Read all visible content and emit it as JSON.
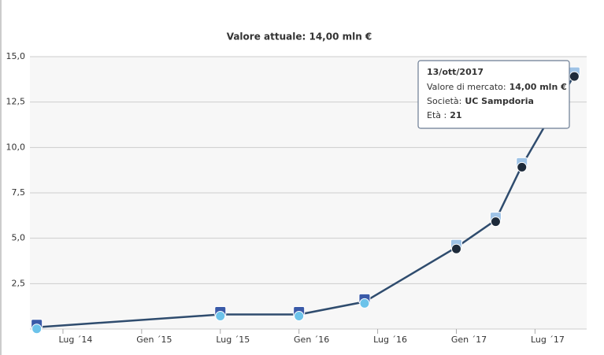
{
  "chart_data": {
    "type": "line",
    "title": "Valore attuale: 14,00 mln €",
    "x": [
      "2014-05",
      "2015-07",
      "2016-01",
      "2016-06",
      "2017-01",
      "2017-04",
      "2017-06",
      "2017-10"
    ],
    "series": [
      {
        "name": "Valore di mercato",
        "color": "#2f4c6e",
        "values": [
          0.1,
          0.8,
          0.8,
          1.5,
          4.5,
          6.0,
          9.0,
          14.0
        ]
      }
    ],
    "xlim": [
      "2014-04",
      "2017-11"
    ],
    "xticks": [
      {
        "value": "2014-07",
        "label": "Lug ´14"
      },
      {
        "value": "2015-01",
        "label": "Gen ´15"
      },
      {
        "value": "2015-07",
        "label": "Lug ´15"
      },
      {
        "value": "2016-01",
        "label": "Gen ´16"
      },
      {
        "value": "2016-07",
        "label": "Lug ´16"
      },
      {
        "value": "2017-01",
        "label": "Gen ´17"
      },
      {
        "value": "2017-07",
        "label": "Lug ´17"
      }
    ],
    "ylim": [
      0,
      15
    ],
    "yticks": [
      {
        "value": 2.5,
        "label": "2,5"
      },
      {
        "value": 5,
        "label": "5,0"
      },
      {
        "value": 7.5,
        "label": "7,5"
      },
      {
        "value": 10,
        "label": "10,0"
      },
      {
        "value": 12.5,
        "label": "12,5"
      },
      {
        "value": 15,
        "label": "15,0"
      }
    ],
    "grid": true,
    "tooltip": {
      "date": "13/ott/2017",
      "value_label": "Valore di mercato:",
      "value": "14,00 mln €",
      "club_label": "Società:",
      "club": "UC Sampdoria",
      "age_label": "Età :",
      "age": "21"
    }
  }
}
